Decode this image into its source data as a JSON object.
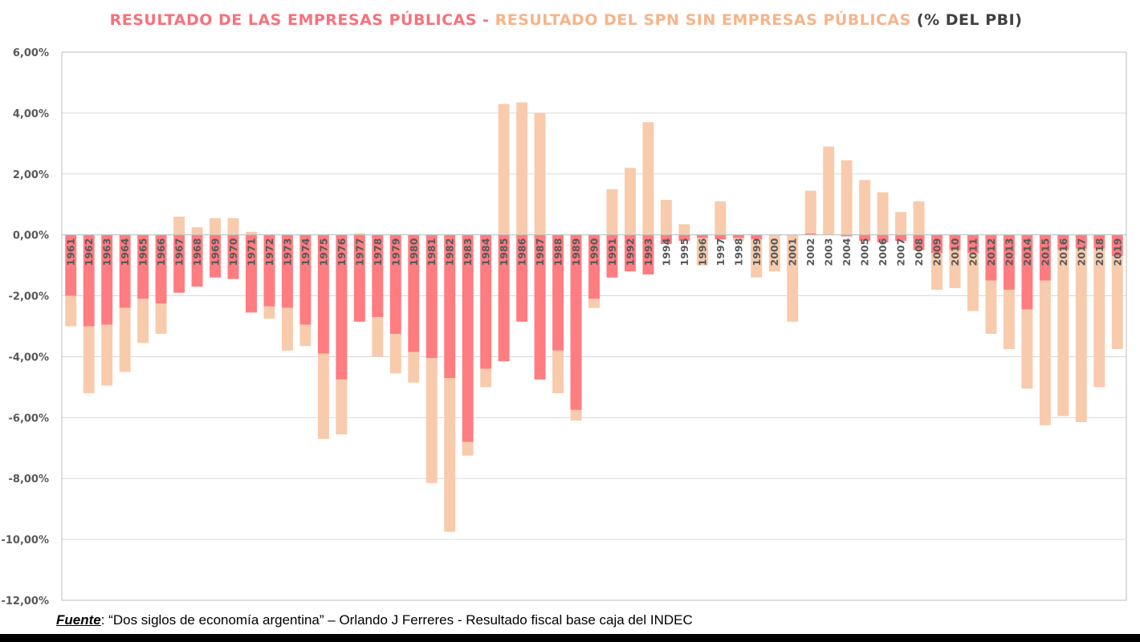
{
  "title": {
    "part1": "RESULTADO DE LAS EMPRESAS PÚBLICAS",
    "separator": " - ",
    "part2": "RESULTADO DEL SPN SIN EMPRESAS PÚBLICAS",
    "part3": " (% DEL PBI)"
  },
  "source": {
    "label": "Fuente",
    "text": ": “Dos siglos de economía argentina” – Orlando J Ferreres  - Resultado fiscal base caja del INDEC"
  },
  "colors": {
    "empresas_publicas": "#ff7c80",
    "spn_sin_empresas": "#f8cbad",
    "grid": "#d9d9d9",
    "axis_text": "#595959",
    "title_part1": "#f7717c",
    "title_part2": "#f6b48a",
    "title_part3": "#404040"
  },
  "chart_data": {
    "type": "bar",
    "stacked": true,
    "ylim": [
      -12,
      6
    ],
    "yticks": [
      6,
      4,
      2,
      0,
      -2,
      -4,
      -6,
      -8,
      -10,
      -12
    ],
    "ytick_labels": [
      "6,00%",
      "4,00%",
      "2,00%",
      "0,00%",
      "-2,00%",
      "-4,00%",
      "-6,00%",
      "-8,00%",
      "-10,00%",
      "-12,00%"
    ],
    "grid": true,
    "legend": "none",
    "categories": [
      "1961",
      "1962",
      "1963",
      "1964",
      "1965",
      "1966",
      "1967",
      "1968",
      "1969",
      "1970",
      "1971",
      "1972",
      "1973",
      "1974",
      "1975",
      "1976",
      "1977",
      "1978",
      "1979",
      "1980",
      "1981",
      "1982",
      "1983",
      "1984",
      "1985",
      "1986",
      "1987",
      "1988",
      "1989",
      "1990",
      "1991",
      "1992",
      "1993",
      "1994",
      "1995",
      "1996",
      "1997",
      "1998",
      "1999",
      "2000",
      "2001",
      "2002",
      "2003",
      "2004",
      "2005",
      "2006",
      "2007",
      "2008",
      "2009",
      "2010",
      "2011",
      "2012",
      "2013",
      "2014",
      "2015",
      "2016",
      "2017",
      "2018",
      "2019"
    ],
    "series": [
      {
        "values": [
          -2.0,
          -3.0,
          -2.95,
          -2.4,
          -2.1,
          -2.25,
          -1.9,
          -1.7,
          -1.4,
          -1.45,
          -2.55,
          -2.35,
          -2.4,
          -2.95,
          -3.9,
          -4.75,
          -2.85,
          -2.7,
          -3.25,
          -3.85,
          -4.05,
          -4.7,
          -6.8,
          -4.4,
          -4.15,
          -2.85,
          -4.75,
          -3.8,
          -5.75,
          -2.1,
          -1.4,
          -1.2,
          -1.3,
          -0.3,
          -0.2,
          -0.1,
          -0.15,
          -0.1,
          -0.15,
          0.0,
          0.0,
          0.05,
          0.0,
          -0.05,
          -0.2,
          -0.25,
          -0.2,
          -0.5,
          -0.6,
          -0.5,
          -0.6,
          -1.5,
          -1.8,
          -2.45,
          -1.5,
          -0.5,
          -0.45,
          -0.45,
          -0.7
        ]
      },
      {
        "values": [
          -1.0,
          -2.2,
          -2.0,
          -2.1,
          -1.45,
          -1.0,
          0.6,
          0.25,
          0.55,
          0.55,
          0.1,
          -0.4,
          -1.4,
          -0.7,
          -2.8,
          -1.8,
          0.05,
          -1.3,
          -1.3,
          -1.0,
          -4.1,
          -5.05,
          -0.45,
          -0.6,
          4.3,
          4.35,
          4.0,
          -1.4,
          -0.35,
          -0.3,
          1.5,
          2.2,
          3.7,
          1.15,
          0.35,
          -0.9,
          1.1,
          -0.1,
          -1.25,
          -1.2,
          -2.85,
          1.4,
          2.9,
          2.45,
          1.8,
          1.4,
          0.75,
          1.1,
          -1.2,
          -1.25,
          -1.9,
          -1.75,
          -1.95,
          -2.6,
          -4.75,
          -5.45,
          -5.7,
          -4.55,
          -3.05
        ]
      }
    ]
  }
}
